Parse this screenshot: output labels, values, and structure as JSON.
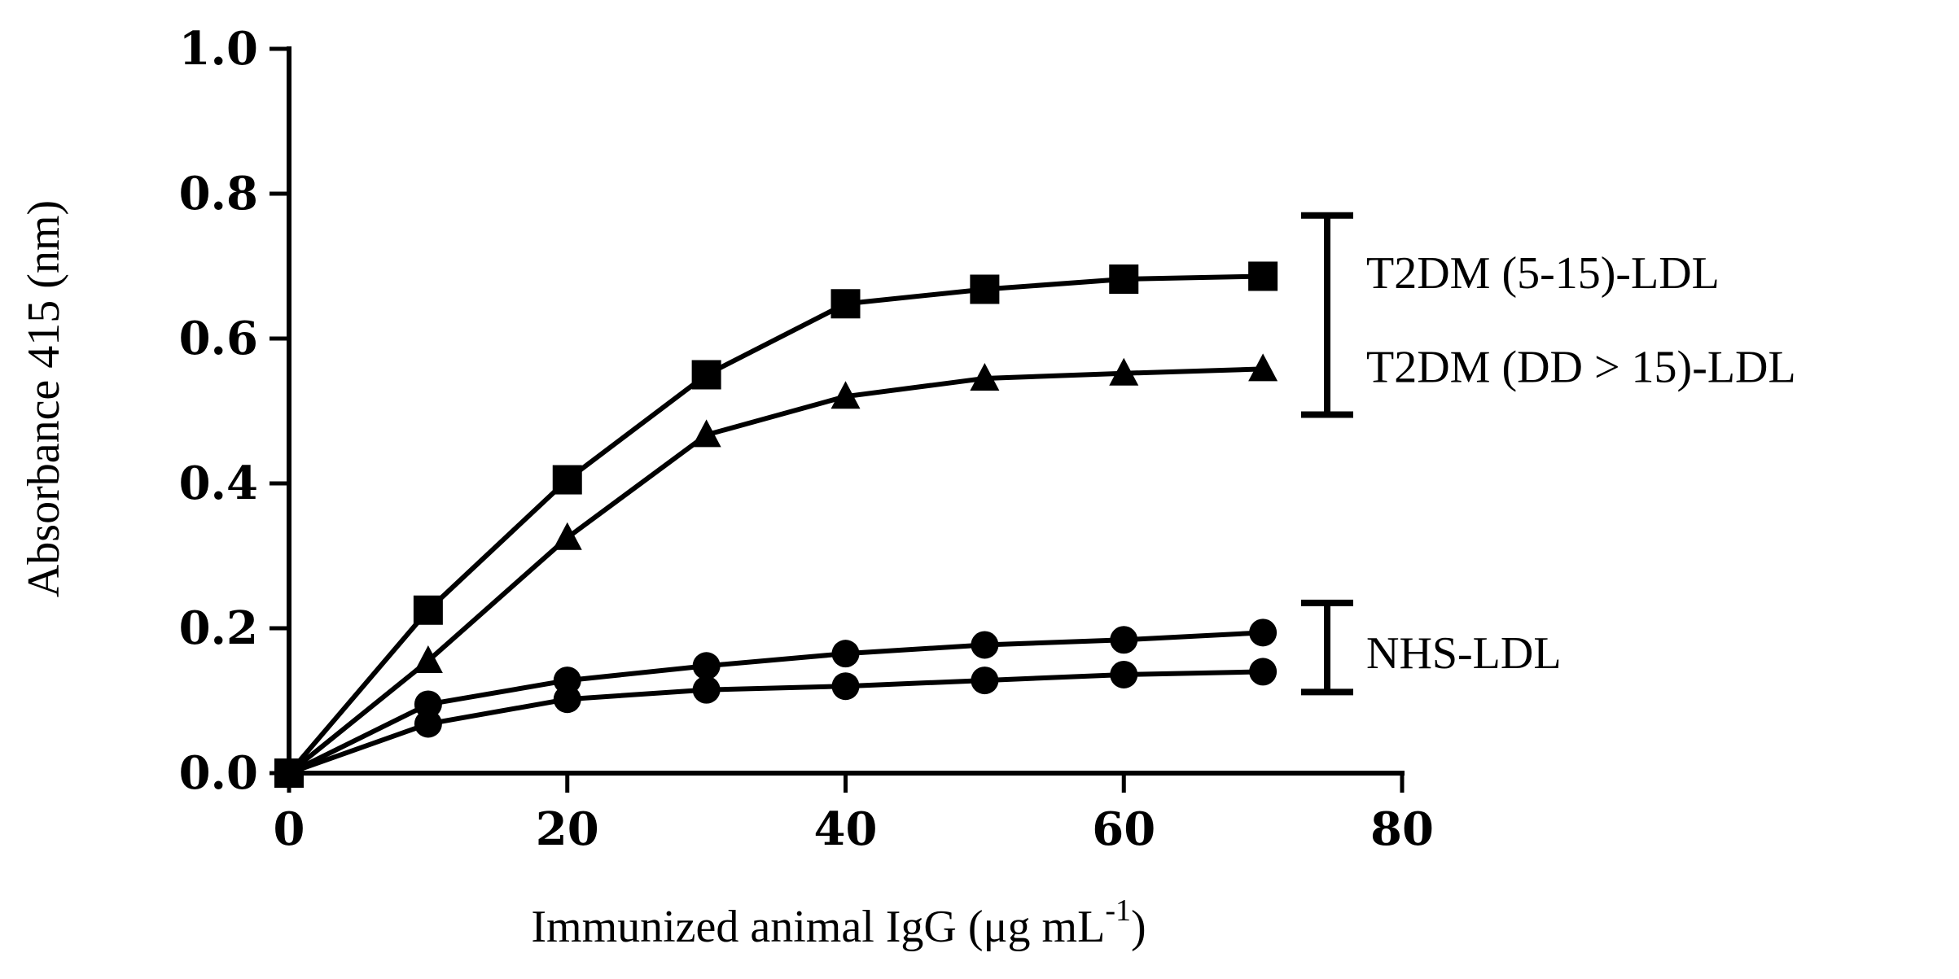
{
  "chart_data": {
    "type": "line",
    "title": "",
    "xlabel": "Immunized animal IgG (μg mL",
    "xlabel_superscript": "-1",
    "xlabel_close": ")",
    "ylabel": "Absorbance 415 (nm)",
    "xlim": [
      0,
      80
    ],
    "ylim": [
      0.0,
      1.0
    ],
    "x_ticks": [
      0,
      20,
      40,
      60,
      80
    ],
    "x_tick_labels": [
      "0",
      "20",
      "40",
      "60",
      "80"
    ],
    "y_ticks": [
      0.0,
      0.2,
      0.4,
      0.6,
      0.8,
      1.0
    ],
    "y_tick_labels": [
      "0.0",
      "0.2",
      "0.4",
      "0.6",
      "0.8",
      "1.0"
    ],
    "grid": false,
    "x": [
      0,
      10,
      20,
      30,
      40,
      50,
      60,
      70
    ],
    "series": [
      {
        "name": "T2DM (5-15)-LDL",
        "marker": "square",
        "values": [
          0.0,
          0.225,
          0.405,
          0.55,
          0.648,
          0.668,
          0.682,
          0.686
        ]
      },
      {
        "name": "T2DM (DD > 15)-LDL",
        "marker": "triangle",
        "values": [
          0.0,
          0.155,
          0.325,
          0.467,
          0.52,
          0.545,
          0.552,
          0.558
        ]
      },
      {
        "name": "NHS-LDL",
        "marker": "circle",
        "values": [
          0.0,
          0.095,
          0.128,
          0.148,
          0.165,
          0.177,
          0.184,
          0.194
        ]
      },
      {
        "name": "NHS-LDL",
        "marker": "circle",
        "values": [
          0.0,
          0.068,
          0.102,
          0.115,
          0.12,
          0.128,
          0.136,
          0.14
        ]
      }
    ],
    "annotations": [
      {
        "bracket_range": [
          0.495,
          0.77
        ],
        "labels": [
          "T2DM (5-15)-LDL",
          "T2DM (DD > 15)-LDL"
        ],
        "label_values": [
          0.69,
          0.56
        ]
      },
      {
        "bracket_range": [
          0.112,
          0.235
        ],
        "labels": [
          "NHS-LDL"
        ],
        "label_values": [
          0.165
        ]
      }
    ]
  }
}
